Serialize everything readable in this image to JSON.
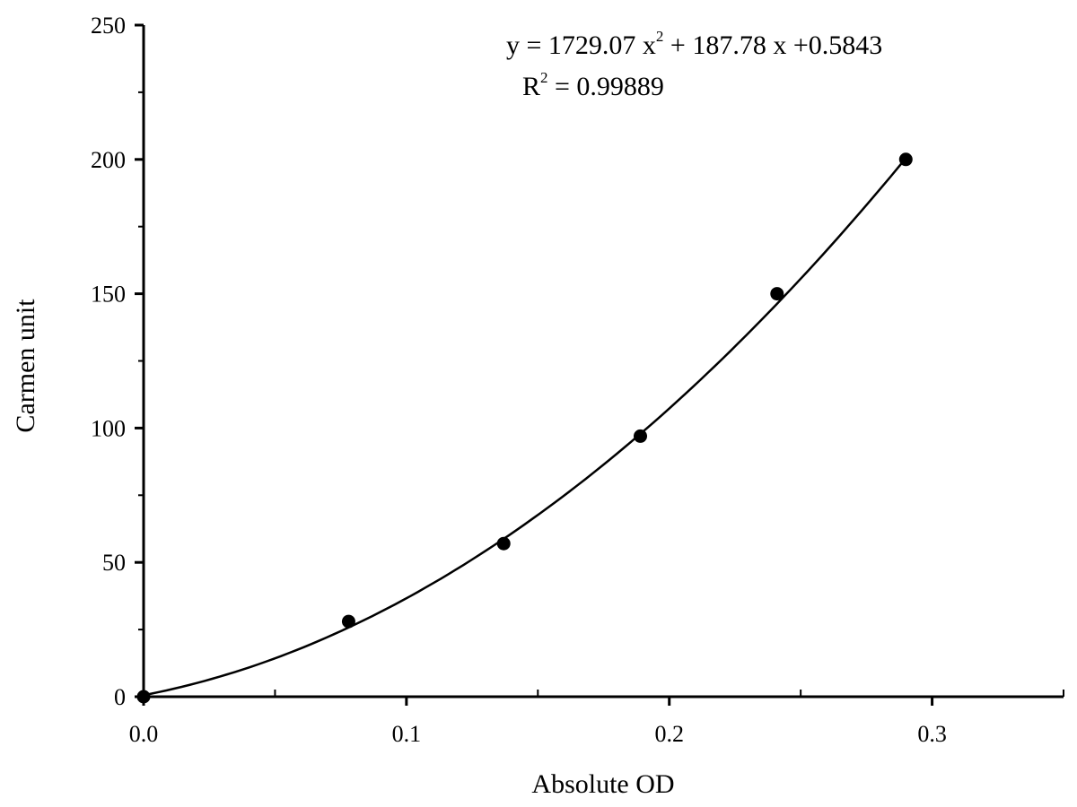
{
  "chart_data": {
    "type": "scatter",
    "xlabel": "Absolute OD",
    "ylabel": "Carmen unit",
    "xlim": [
      0,
      0.35
    ],
    "ylim": [
      0,
      250
    ],
    "x_ticks": [
      0.0,
      0.1,
      0.2,
      0.3
    ],
    "x_tick_labels": [
      "0.0",
      "0.1",
      "0.2",
      "0.3"
    ],
    "x_minor_step": 0.05,
    "y_ticks": [
      0,
      50,
      100,
      150,
      200,
      250
    ],
    "y_tick_labels": [
      "0",
      "50",
      "100",
      "150",
      "200",
      "250"
    ],
    "y_minor_step": 25,
    "grid": false,
    "points": [
      {
        "x": 0.0,
        "y": 0
      },
      {
        "x": 0.078,
        "y": 28
      },
      {
        "x": 0.137,
        "y": 57
      },
      {
        "x": 0.189,
        "y": 97
      },
      {
        "x": 0.241,
        "y": 150
      },
      {
        "x": 0.29,
        "y": 200
      }
    ],
    "fit": {
      "type": "polynomial-2",
      "a": 1729.07,
      "b": 187.78,
      "c": 0.5843,
      "x_range": [
        0,
        0.29
      ]
    },
    "annotations": {
      "equation_prefix": "y = 1729.07 x",
      "equation_sup": "2",
      "equation_suffix": " + 187.78 x +0.5843",
      "r2_prefix": "R",
      "r2_sup": "2",
      "r2_suffix": " = 0.99889"
    },
    "marker_color": "#000000",
    "line_color": "#000000"
  }
}
